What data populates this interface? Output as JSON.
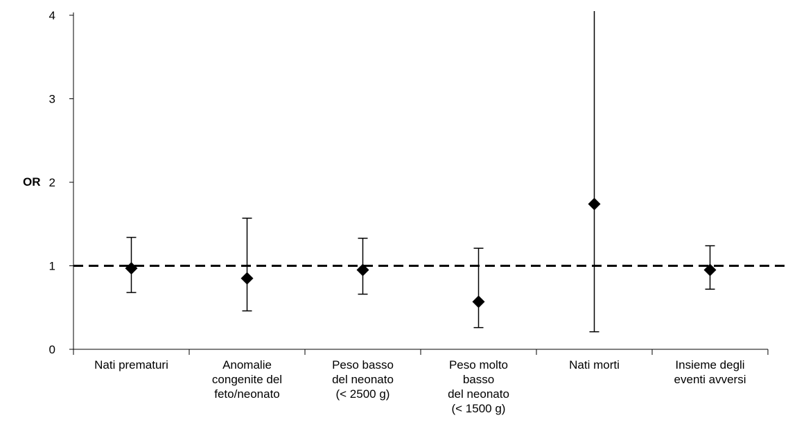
{
  "chart_data": {
    "type": "scatter",
    "ylabel": "OR",
    "xlabel": "",
    "title": "",
    "ylim": [
      0,
      4
    ],
    "yticks": [
      "0",
      "1",
      "2",
      "3",
      "4"
    ],
    "reference_line": 1,
    "categories": [
      [
        "Nati prematuri"
      ],
      [
        "Anomalie",
        "congenite del",
        "feto/neonato"
      ],
      [
        "Peso basso",
        "del neonato",
        "(< 2500 g)"
      ],
      [
        "Peso molto",
        "basso",
        "del neonato",
        "(< 1500 g)"
      ],
      [
        "Nati morti"
      ],
      [
        "Insieme degli",
        "eventi avversi"
      ]
    ],
    "points": [
      {
        "or": 0.97,
        "lower": 0.68,
        "upper": 1.34
      },
      {
        "or": 0.85,
        "lower": 0.46,
        "upper": 1.57
      },
      {
        "or": 0.95,
        "lower": 0.66,
        "upper": 1.33
      },
      {
        "or": 0.57,
        "lower": 0.26,
        "upper": 1.21
      },
      {
        "or": 1.74,
        "lower": 0.21,
        "upper": 4.05
      },
      {
        "or": 0.95,
        "lower": 0.72,
        "upper": 1.24
      }
    ],
    "grid": false,
    "legend": "none"
  }
}
